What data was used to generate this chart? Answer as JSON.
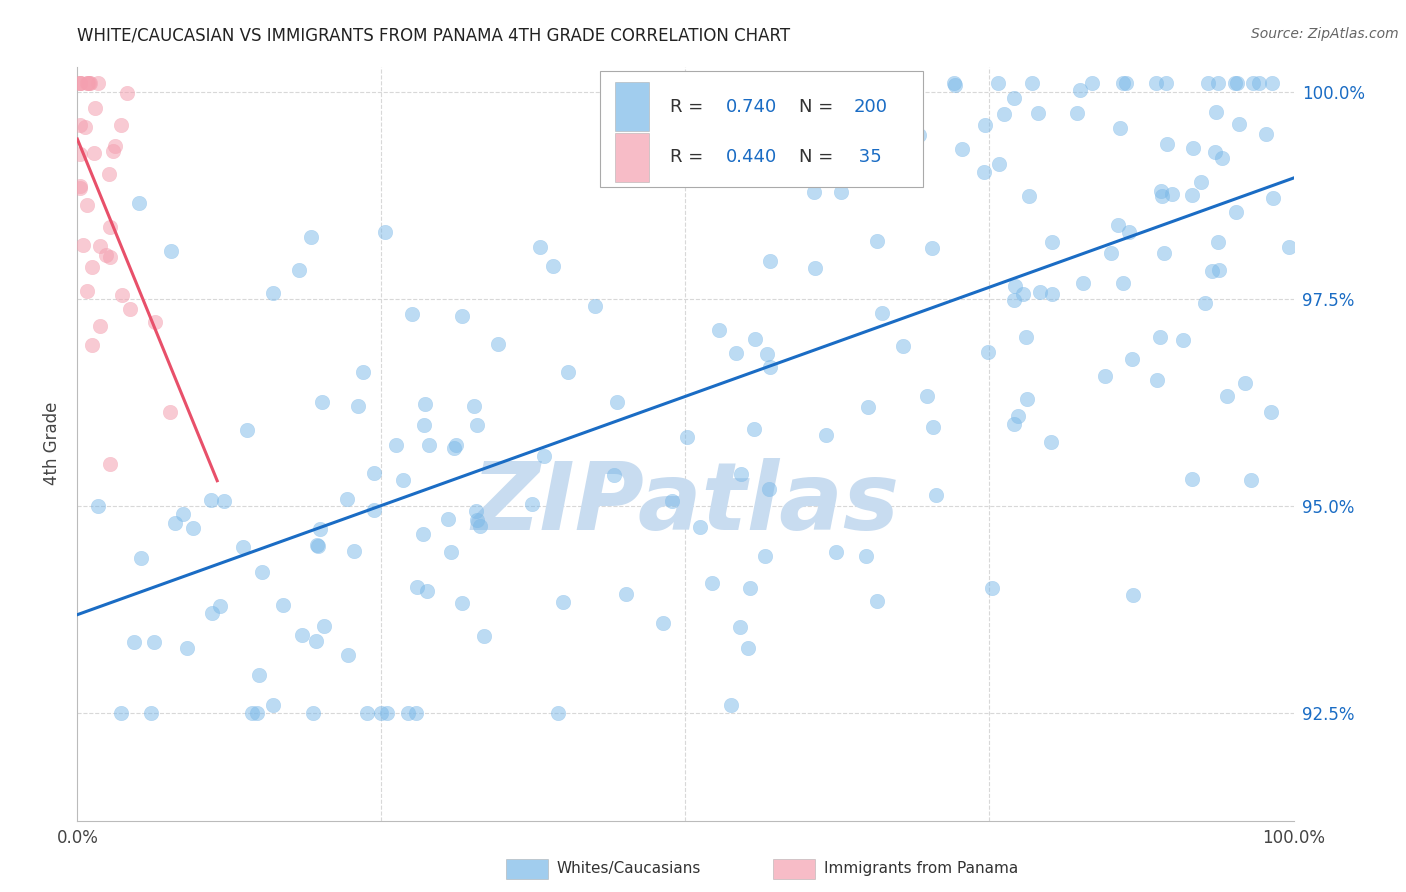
{
  "title": "WHITE/CAUCASIAN VS IMMIGRANTS FROM PANAMA 4TH GRADE CORRELATION CHART",
  "source": "Source: ZipAtlas.com",
  "ylabel": "4th Grade",
  "x_min": 0.0,
  "x_max": 1.0,
  "y_min": 0.912,
  "y_max": 1.003,
  "y_ticks": [
    0.925,
    0.95,
    0.975,
    1.0
  ],
  "y_tick_labels": [
    "92.5%",
    "95.0%",
    "97.5%",
    "100.0%"
  ],
  "blue_R": 0.74,
  "blue_N": 200,
  "pink_R": 0.44,
  "pink_N": 35,
  "blue_color": "#7ab8e8",
  "pink_color": "#f4a0b0",
  "blue_line_color": "#1a6cc4",
  "pink_line_color": "#e8506a",
  "watermark_text": "ZIPatlas",
  "watermark_color": "#c8dcf0",
  "grid_color": "#d8d8d8",
  "tick_color_blue": "#1a6cc4",
  "tick_color_dark": "#444444"
}
